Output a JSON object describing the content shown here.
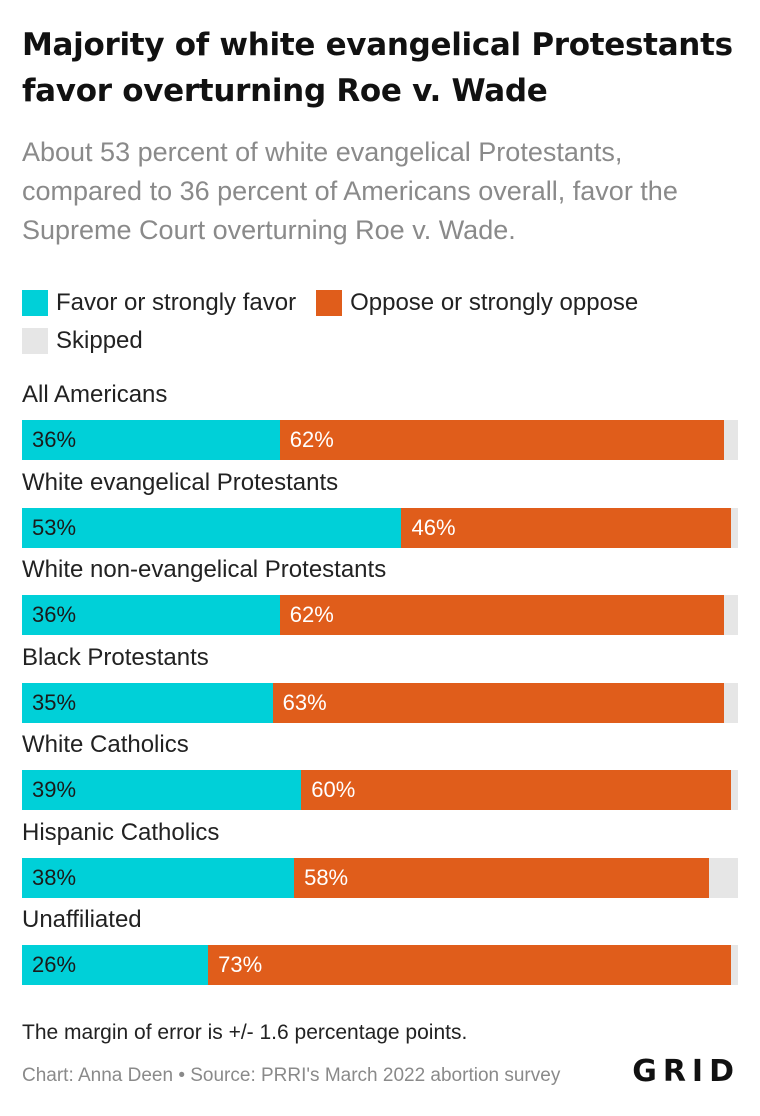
{
  "title": "Majority of white evangelical Protestants favor overturning Roe v. Wade",
  "subtitle": "About 53 percent of white evangelical Protestants, compared to 36 percent of Americans overall, favor the Supreme Court overturning Roe v. Wade.",
  "legend": [
    {
      "label": "Favor or strongly favor",
      "color": "#00d0d8"
    },
    {
      "label": "Oppose or strongly oppose",
      "color": "#e05d1b"
    },
    {
      "label": "Skipped",
      "color": "#e6e6e6"
    }
  ],
  "chart_data": {
    "type": "bar",
    "orientation": "horizontal",
    "stacked": true,
    "title": "Majority of white evangelical Protestants favor overturning Roe v. Wade",
    "categories": [
      "All Americans",
      "White evangelical Protestants",
      "White non-evangelical Protestants",
      "Black Protestants",
      "White Catholics",
      "Hispanic Catholics",
      "Unaffiliated"
    ],
    "series": [
      {
        "name": "Favor or strongly favor",
        "color": "#00d0d8",
        "values": [
          36,
          53,
          36,
          35,
          39,
          38,
          26
        ],
        "labels": [
          "36%",
          "53%",
          "36%",
          "35%",
          "39%",
          "38%",
          "26%"
        ]
      },
      {
        "name": "Oppose or strongly oppose",
        "color": "#e05d1b",
        "values": [
          62,
          46,
          62,
          63,
          60,
          58,
          73
        ],
        "labels": [
          "62%",
          "46%",
          "62%",
          "63%",
          "60%",
          "58%",
          "73%"
        ]
      },
      {
        "name": "Skipped",
        "color": "#e6e6e6",
        "values": [
          2,
          1,
          2,
          2,
          1,
          4,
          1
        ]
      }
    ],
    "xlim": [
      0,
      100
    ],
    "grid": false,
    "legend_position": "top"
  },
  "footer": {
    "note": "The margin of error is +/- 1.6 percentage points.",
    "source": "Chart: Anna Deen • Source: PRRI's March 2022 abortion survey",
    "brand": "GRID"
  }
}
